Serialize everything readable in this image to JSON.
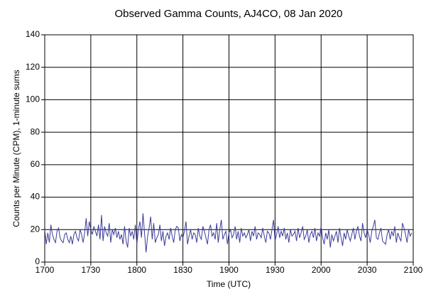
{
  "chart_data": {
    "type": "line",
    "title": "Observed Gamma Counts, AJ4CO, 08 Jan 2020",
    "x_label": "Time (UTC)",
    "y_label": "Counts per Minute (CPM), 1-minute sums",
    "x": [
      0,
      1,
      2,
      3,
      4,
      5,
      6,
      7,
      8,
      9,
      10,
      11,
      12,
      13,
      14,
      15,
      16,
      17,
      18,
      19,
      20,
      21,
      22,
      23,
      24,
      25,
      26,
      27,
      28,
      29,
      30,
      31,
      32,
      33,
      34,
      35,
      36,
      37,
      38,
      39,
      40,
      41,
      42,
      43,
      44,
      45,
      46,
      47,
      48,
      49,
      50,
      51,
      52,
      53,
      54,
      55,
      56,
      57,
      58,
      59,
      60,
      61,
      62,
      63,
      64,
      65,
      66,
      67,
      68,
      69,
      70,
      71,
      72,
      73,
      74,
      75,
      76,
      77,
      78,
      79,
      80,
      81,
      82,
      83,
      84,
      85,
      86,
      87,
      88,
      89,
      90,
      91,
      92,
      93,
      94,
      95,
      96,
      97,
      98,
      99,
      100,
      101,
      102,
      103,
      104,
      105,
      106,
      107,
      108,
      109,
      110,
      111,
      112,
      113,
      114,
      115,
      116,
      117,
      118,
      119,
      120,
      121,
      122,
      123,
      124,
      125,
      126,
      127,
      128,
      129,
      130,
      131,
      132,
      133,
      134,
      135,
      136,
      137,
      138,
      139,
      140,
      141,
      142,
      143,
      144,
      145,
      146,
      147,
      148,
      149,
      150,
      151,
      152,
      153,
      154,
      155,
      156,
      157,
      158,
      159,
      160,
      161,
      162,
      163,
      164,
      165,
      166,
      167,
      168,
      169,
      170,
      171,
      172,
      173,
      174,
      175,
      176,
      177,
      178,
      179,
      180,
      181,
      182,
      183,
      184,
      185,
      186,
      187,
      188,
      189,
      190,
      191,
      192,
      193,
      194,
      195,
      196,
      197,
      198,
      199,
      200,
      201,
      202,
      203,
      204,
      205,
      206,
      207,
      208,
      209,
      210,
      211,
      212,
      213,
      214,
      215,
      216,
      217,
      218,
      219,
      220,
      221,
      222,
      223,
      224,
      225,
      226,
      227,
      228,
      229,
      230,
      231,
      232,
      233,
      234,
      235,
      236,
      237,
      238,
      239
    ],
    "series": [
      {
        "color": "#3a3a9a",
        "values": [
          20,
          11,
          18,
          12,
          23,
          17,
          14,
          12,
          19,
          21,
          15,
          13,
          12,
          17,
          18,
          14,
          12,
          16,
          11,
          17,
          19,
          15,
          13,
          20,
          17,
          12,
          18,
          27,
          16,
          25,
          20,
          17,
          22,
          19,
          16,
          23,
          14,
          29,
          13,
          22,
          18,
          16,
          24,
          12,
          20,
          17,
          21,
          15,
          19,
          14,
          17,
          11,
          22,
          13,
          9,
          21,
          16,
          19,
          14,
          23,
          11,
          20,
          25,
          15,
          30,
          18,
          6,
          16,
          21,
          28,
          14,
          24,
          12,
          15,
          17,
          23,
          13,
          19,
          10,
          16,
          18,
          14,
          21,
          16,
          12,
          20,
          22,
          21,
          13,
          17,
          15,
          19,
          25,
          11,
          16,
          20,
          14,
          18,
          17,
          12,
          21,
          16,
          14,
          22,
          19,
          15,
          11,
          20,
          23,
          16,
          18,
          14,
          24,
          12,
          20,
          26,
          14,
          17,
          19,
          11,
          18,
          20,
          15,
          17,
          22,
          14,
          19,
          12,
          21,
          16,
          18,
          15,
          17,
          20,
          13,
          19,
          16,
          22,
          14,
          18,
          17,
          15,
          21,
          16,
          12,
          19,
          18,
          14,
          20,
          26,
          13,
          17,
          22,
          15,
          19,
          16,
          21,
          14,
          18,
          12,
          20,
          16,
          17,
          19,
          13,
          21,
          15,
          18,
          22,
          14,
          16,
          20,
          12,
          17,
          19,
          15,
          21,
          13,
          18,
          16,
          22,
          15,
          11,
          18,
          14,
          20,
          9,
          17,
          13,
          16,
          19,
          12,
          21,
          15,
          10,
          18,
          14,
          20,
          16,
          13,
          17,
          21,
          14,
          19,
          22,
          16,
          13,
          24,
          18,
          15,
          20,
          17,
          12,
          19,
          22,
          26,
          15,
          14,
          18,
          21,
          13,
          12,
          11,
          17,
          20,
          14,
          19,
          16,
          22,
          12,
          18,
          15,
          13,
          24,
          21,
          17,
          12,
          20,
          16,
          18
        ]
      }
    ],
    "xlim": [
      0,
      240
    ],
    "xticks": [
      {
        "value": 0,
        "label": "1700"
      },
      {
        "value": 30,
        "label": "1730"
      },
      {
        "value": 60,
        "label": "1800"
      },
      {
        "value": 90,
        "label": "1830"
      },
      {
        "value": 120,
        "label": "1900"
      },
      {
        "value": 150,
        "label": "1930"
      },
      {
        "value": 180,
        "label": "2000"
      },
      {
        "value": 210,
        "label": "2030"
      },
      {
        "value": 240,
        "label": "2100"
      }
    ],
    "ylim": [
      0,
      140
    ],
    "yticks": [
      0,
      20,
      40,
      60,
      80,
      100,
      120,
      140
    ],
    "grid": true
  }
}
